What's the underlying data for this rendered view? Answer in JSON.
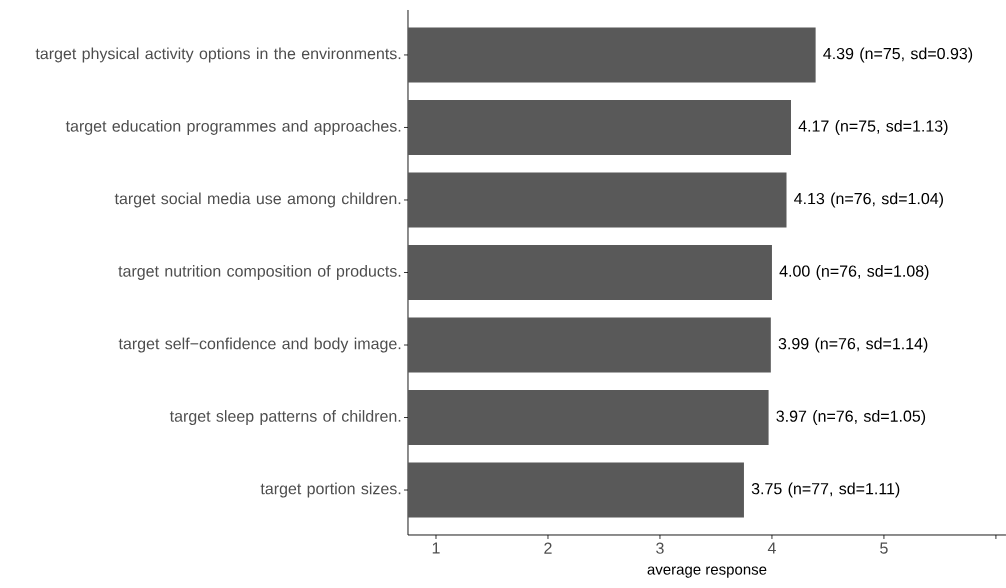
{
  "chart_data": {
    "type": "bar",
    "orientation": "horizontal",
    "categories": [
      "target physical activity options in the environments.",
      "target education programmes and approaches.",
      "target social media use among children.",
      "target nutrition composition of products.",
      "target self−confidence and body image.",
      "target sleep patterns of children.",
      "target portion sizes."
    ],
    "values": [
      4.39,
      4.17,
      4.13,
      4.0,
      3.99,
      3.97,
      3.75
    ],
    "value_labels": [
      "4.39 (n=75, sd=0.93)",
      "4.17 (n=75, sd=1.13)",
      "4.13 (n=76, sd=1.04)",
      "4.00 (n=76, sd=1.08)",
      "3.99 (n=76, sd=1.14)",
      "3.97 (n=76, sd=1.05)",
      "3.75 (n=77, sd=1.11)"
    ],
    "color": "#595959",
    "xlabel": "average response",
    "xlim": [
      0.75,
      6.09
    ],
    "xticks": [
      1,
      2,
      3,
      4,
      5,
      {
        "value": 6,
        "label": null
      }
    ]
  }
}
